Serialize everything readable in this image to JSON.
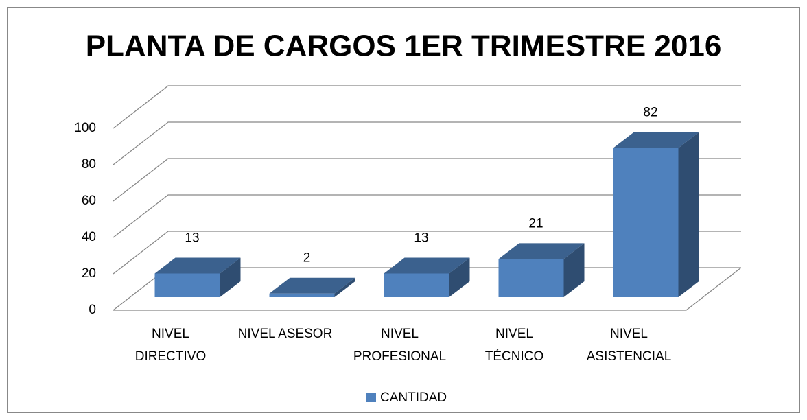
{
  "chart_data": {
    "type": "bar3d",
    "title": "PLANTA DE CARGOS 1ER TRIMESTRE 2016",
    "categories": [
      "NIVEL\nDIRECTIVO",
      "NIVEL ASESOR",
      "NIVEL\nPROFESIONAL",
      "NIVEL\nTÉCNICO",
      "NIVEL\nASISTENCIAL"
    ],
    "series": [
      {
        "name": "CANTIDAD",
        "color": "#4f81bd",
        "values": [
          13,
          2,
          13,
          21,
          82
        ]
      }
    ],
    "ylim": [
      0,
      100
    ],
    "yticks": [
      0,
      20,
      40,
      60,
      80,
      100
    ],
    "grid": true,
    "legend": "bottom"
  }
}
